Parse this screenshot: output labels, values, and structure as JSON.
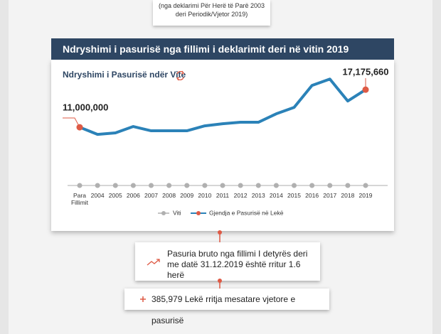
{
  "header_note": "(nga deklarimi Për Herë të Parë 2003 deri Periodik/Vjetor 2019)",
  "panel_title": "Ndryshimi i pasurisë nga fillimi i deklarimit deri në vitin 2019",
  "chart_data": {
    "type": "line",
    "title": "Ndryshimi i Pasurisë ndër Vite",
    "x_label": "Viti",
    "categories": [
      "Para Fillimit",
      "2004",
      "2005",
      "2006",
      "2007",
      "2008",
      "2009",
      "2010",
      "2011",
      "2012",
      "2013",
      "2014",
      "2015",
      "2016",
      "2017",
      "2018",
      "2019"
    ],
    "series": [
      {
        "name": "Gjendja e Pasurisë në Lekë",
        "color": "#2b82b8",
        "marker_color": "#de5a45",
        "values": [
          11000000,
          9830000,
          10070000,
          11120000,
          10420000,
          10420000,
          10420000,
          11230000,
          11580000,
          11820000,
          11820000,
          13210000,
          14260000,
          17870000,
          18920000,
          15310000,
          17175660
        ],
        "value_labels": [
          "11,000,000",
          null,
          null,
          null,
          null,
          null,
          null,
          null,
          null,
          null,
          null,
          null,
          null,
          null,
          null,
          null,
          "17,175,660"
        ]
      }
    ],
    "ylim": [
      4000000,
      20000000
    ]
  },
  "callouts": [
    {
      "text": "Pasuria bruto nga fillimi I detyrës deri me datë 31.12.2019 është rritur 1.6 herë"
    },
    {
      "text": "385,979 Lekë rritja mesatare vjetore e pasurisë"
    }
  ]
}
